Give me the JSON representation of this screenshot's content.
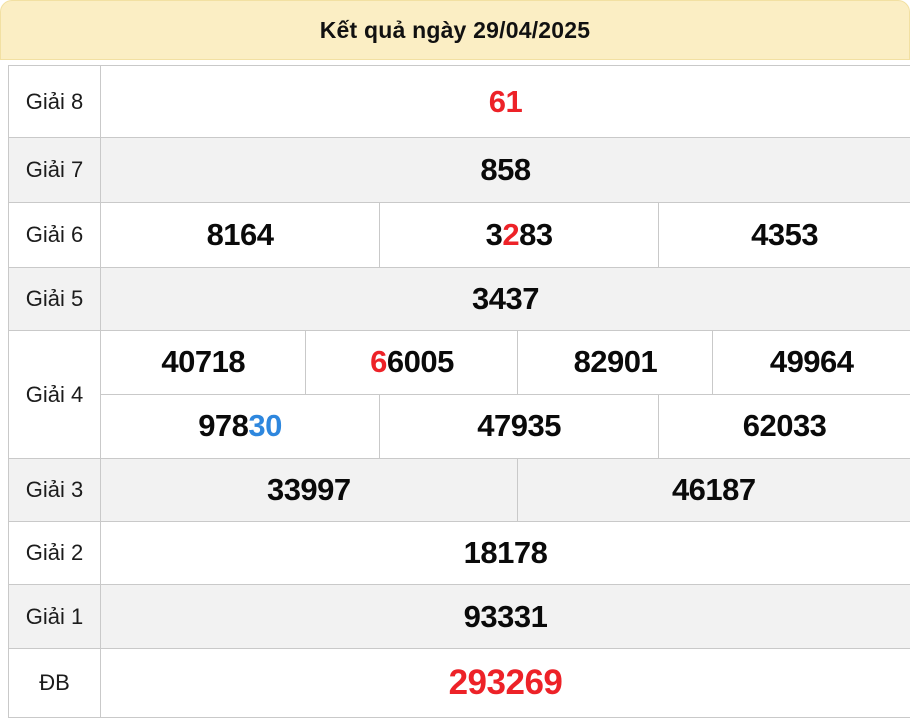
{
  "header": {
    "title": "Kết quả ngày 29/04/2025"
  },
  "colors": {
    "red": "#ed2228",
    "blue": "#2e87de",
    "header_bg": "#fbeec4",
    "header_border": "#f2e0a2",
    "row_alt_bg": "#f2f2f2",
    "border": "#c9c9c9"
  },
  "table": {
    "rows": [
      {
        "label": "Giải 8",
        "cells": [
          {
            "parts": [
              {
                "text": "61",
                "color": "red"
              }
            ]
          }
        ]
      },
      {
        "label": "Giải 7",
        "cells": [
          {
            "parts": [
              {
                "text": "858",
                "color": "black"
              }
            ]
          }
        ]
      },
      {
        "label": "Giải 6",
        "cells": [
          {
            "parts": [
              {
                "text": "8164",
                "color": "black"
              }
            ]
          },
          {
            "parts": [
              {
                "text": "3",
                "color": "black"
              },
              {
                "text": "2",
                "color": "red"
              },
              {
                "text": "83",
                "color": "black"
              }
            ]
          },
          {
            "parts": [
              {
                "text": "4353",
                "color": "black"
              }
            ]
          }
        ]
      },
      {
        "label": "Giải 5",
        "cells": [
          {
            "parts": [
              {
                "text": "3437",
                "color": "black"
              }
            ]
          }
        ]
      },
      {
        "label": "Giải 4",
        "subrows": [
          [
            {
              "parts": [
                {
                  "text": "40718",
                  "color": "black"
                }
              ]
            },
            {
              "parts": [
                {
                  "text": "6",
                  "color": "red"
                },
                {
                  "text": "6005",
                  "color": "black"
                }
              ]
            },
            {
              "parts": [
                {
                  "text": "82901",
                  "color": "black"
                }
              ]
            },
            {
              "parts": [
                {
                  "text": "49964",
                  "color": "black"
                }
              ]
            }
          ],
          [
            {
              "parts": [
                {
                  "text": "978",
                  "color": "black"
                },
                {
                  "text": "30",
                  "color": "blue"
                }
              ]
            },
            {
              "parts": [
                {
                  "text": "47935",
                  "color": "black"
                }
              ]
            },
            {
              "parts": [
                {
                  "text": "62033",
                  "color": "black"
                }
              ]
            }
          ]
        ]
      },
      {
        "label": "Giải 3",
        "cells": [
          {
            "parts": [
              {
                "text": "33997",
                "color": "black"
              }
            ]
          },
          {
            "parts": [
              {
                "text": "46187",
                "color": "black"
              }
            ]
          }
        ]
      },
      {
        "label": "Giải 2",
        "cells": [
          {
            "parts": [
              {
                "text": "18178",
                "color": "black"
              }
            ]
          }
        ]
      },
      {
        "label": "Giải 1",
        "cells": [
          {
            "parts": [
              {
                "text": "93331",
                "color": "black"
              }
            ]
          }
        ]
      },
      {
        "label": "ĐB",
        "cells": [
          {
            "parts": [
              {
                "text": "293269",
                "color": "red"
              }
            ]
          }
        ]
      }
    ]
  }
}
